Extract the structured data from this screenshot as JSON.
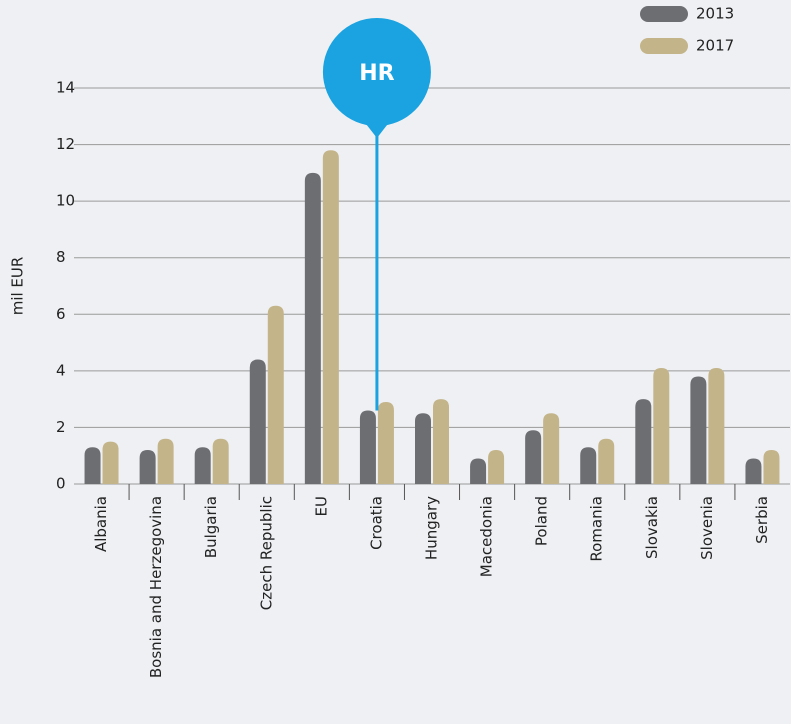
{
  "chart_data": {
    "type": "bar",
    "y_label": "mil EUR",
    "categories": [
      "Albania",
      "Bosnia and Herzegovina",
      "Bulgaria",
      "Czech Republic",
      "EU",
      "Croatia",
      "Hungary",
      "Macedonia",
      "Poland",
      "Romania",
      "Slovakia",
      "Slovenia",
      "Serbia"
    ],
    "series": [
      {
        "name": "2013",
        "color": "#6d6e72",
        "values": [
          1.3,
          1.2,
          1.3,
          4.4,
          11.0,
          2.6,
          2.5,
          0.9,
          1.9,
          1.3,
          3.0,
          3.8,
          0.9
        ]
      },
      {
        "name": "2017",
        "color": "#c4b48a",
        "values": [
          1.5,
          1.6,
          1.6,
          6.3,
          11.8,
          2.9,
          3.0,
          1.2,
          2.5,
          1.6,
          4.1,
          4.1,
          1.2
        ]
      }
    ],
    "ylim": [
      0,
      14
    ],
    "yticks": [
      0,
      2,
      4,
      6,
      8,
      10,
      12,
      14
    ],
    "grid": true,
    "annotation": {
      "label": "HR",
      "category": "Croatia",
      "color": "#1aa3e0"
    }
  }
}
